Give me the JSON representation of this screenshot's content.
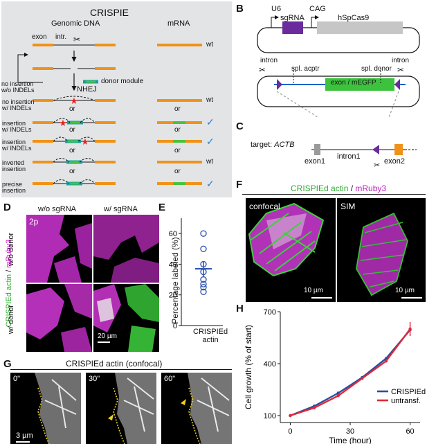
{
  "panel_letters": [
    "A",
    "B",
    "C",
    "D",
    "E",
    "F",
    "G",
    "H"
  ],
  "panelA": {
    "title": "CRISPIE",
    "col_genomic": "Genomic DNA",
    "col_mrna": "mRNA",
    "exon": "exon",
    "intron": "intr.",
    "donor_module": "donor module",
    "nhej": "NHEJ",
    "no_insertion_wo": "no insertion\nw/o INDELs",
    "or": "or",
    "rows": [
      {
        "label": "",
        "outcome": "wt"
      },
      {
        "label": "no insertion\nw/ INDELs",
        "outcome": "wt"
      },
      {
        "label": "insertion\nw/ INDELs",
        "outcome": "✓"
      },
      {
        "label": "insertion\nw/ INDELs",
        "outcome": "✓"
      },
      {
        "label": "inverted\ninsertion",
        "outcome": "wt"
      },
      {
        "label": "precise\ninsertion",
        "outcome": "✓"
      }
    ]
  },
  "panelB": {
    "u6": "U6",
    "sgrna": "sgRNA",
    "cag": "CAG",
    "cas9": "hSpCas9",
    "intron_left": "intron",
    "intron_right": "intron",
    "spl_acptr": "spl. acptr",
    "spl_donor": "spl. donor",
    "exon_megfp": "exon / mEGFP"
  },
  "panelC": {
    "target_prefix": "target: ",
    "target_gene": "ACTB",
    "exon1": "exon1",
    "intron1": "intron1",
    "exon2": "exon2"
  },
  "panelD": {
    "col1": "w/o sgRNA",
    "col2": "w/ sgRNA",
    "row1": "w/o donor",
    "row2": "w/ donor",
    "side_green": "CRISPIEd actin",
    "side_sep": " / ",
    "side_mag": "mRuby3",
    "badge": "2p",
    "scale": "20 µm"
  },
  "panelE": {
    "ylabel": "Percentage labeled (%)",
    "xlabel": "CRISPIEd\nactin"
  },
  "panelF": {
    "title_green": "CRISPIEd actin",
    "title_sep": " / ",
    "title_mag": "mRuby3",
    "confocal": "confocal",
    "sim": "SIM",
    "scale1": "10 µm",
    "scale2": "10 µm"
  },
  "panelG": {
    "title": "CRISPIEd actin (confocal)",
    "times": [
      "0\"",
      "30\"",
      "60\""
    ],
    "scale": "3 µm"
  },
  "chart_data": [
    {
      "type": "scatter",
      "panel": "E",
      "ylabel": "Percentage labeled (%)",
      "categories": [
        "CRISPIEd\nactin"
      ],
      "ylim": [
        0,
        70
      ],
      "yticks": [
        0,
        20,
        40,
        60
      ],
      "points": [
        60,
        50,
        40,
        35,
        30,
        27,
        25,
        22
      ],
      "mean": 37,
      "sem": [
        32,
        42
      ],
      "color": "#3356b0"
    },
    {
      "type": "line",
      "panel": "H",
      "xlabel": "Time (hour)",
      "ylabel": "Cell growth (% of start)",
      "xlim": [
        -5,
        65
      ],
      "ylim": [
        60,
        700
      ],
      "xticks": [
        0,
        30,
        60
      ],
      "yticks": [
        100,
        400,
        700
      ],
      "x": [
        0,
        12,
        24,
        36,
        48,
        60
      ],
      "series": [
        {
          "name": "CRISPIEd",
          "color": "#2c4f9e",
          "values": [
            100,
            155,
            230,
            320,
            430,
            595
          ]
        },
        {
          "name": "untransf.",
          "color": "#e0283a",
          "values": [
            100,
            145,
            215,
            315,
            415,
            600
          ]
        }
      ],
      "legend": "bottom-right"
    }
  ]
}
